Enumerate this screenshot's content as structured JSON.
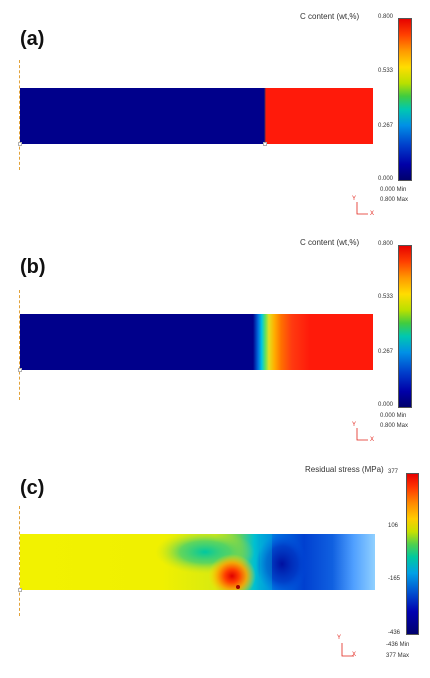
{
  "panels": [
    {
      "id": "a",
      "label": "(a)",
      "legend_title": "C content (wt,%)",
      "ticks": [
        "0.800",
        "0.533",
        "0.267",
        "0.000"
      ],
      "min_row": "0.000  Min",
      "max_row": "0.800  Max",
      "axis_y": "Y",
      "axis_x": "X",
      "colors": {
        "low": "#00008b",
        "high": "#ff1a0a"
      },
      "interface_fraction": 0.695,
      "diffusion": "sharp"
    },
    {
      "id": "b",
      "label": "(b)",
      "legend_title": "C content (wt,%)",
      "ticks": [
        "0.800",
        "0.533",
        "0.267",
        "0.000"
      ],
      "min_row": "0.000  Min",
      "max_row": "0.800  Max",
      "axis_y": "Y",
      "axis_x": "X",
      "colors": {
        "low": "#00008b",
        "high": "#ff1a0a"
      },
      "interface_fraction": 0.67,
      "diffusion": "graded"
    },
    {
      "id": "c",
      "label": "(c)",
      "legend_title": "Residual stress (MPa)",
      "ticks": [
        "377",
        "106",
        "-165",
        "-436"
      ],
      "min_row": "-436  Min",
      "max_row": "377  Max",
      "axis_y": "Y",
      "axis_x": "X",
      "diffusion": "stress"
    }
  ]
}
